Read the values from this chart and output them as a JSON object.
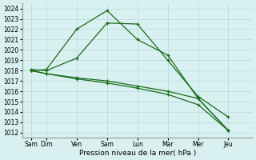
{
  "background_color": "#d8f0f0",
  "grid_color": "#b8dada",
  "line_color": "#1a6b1a",
  "xlabel": "Pression niveau de la mer( hPa )",
  "ylim": [
    1011.5,
    1024.5
  ],
  "xlim": [
    -0.3,
    7.3
  ],
  "xtick_positions": [
    0,
    0.5,
    1.5,
    2.5,
    3.5,
    4.5,
    5.5,
    6.5
  ],
  "xtick_labels": [
    "Sam",
    "Dim",
    "Ven",
    "Sam",
    "Lun",
    "Mar",
    "Mer",
    "Jeu"
  ],
  "series": [
    {
      "x": [
        0,
        0.5,
        1.5,
        2.5,
        3.5,
        4.5,
        5.5,
        6.5
      ],
      "y": [
        1018.0,
        1018.1,
        1022.0,
        1023.8,
        1021.0,
        1019.5,
        1015.3,
        1012.2
      ]
    },
    {
      "x": [
        0,
        0.5,
        1.5,
        2.5,
        3.5,
        4.5,
        5.5,
        6.5
      ],
      "y": [
        1018.1,
        1018.0,
        1019.2,
        1022.6,
        1022.5,
        1019.0,
        1015.5,
        1013.5
      ]
    },
    {
      "x": [
        0,
        0.5,
        1.5,
        2.5,
        3.5,
        4.5,
        5.5,
        6.5
      ],
      "y": [
        1018.0,
        1017.7,
        1017.3,
        1017.0,
        1016.5,
        1016.0,
        1015.3,
        1012.2
      ]
    },
    {
      "x": [
        0,
        0.5,
        1.5,
        2.5,
        3.5,
        4.5,
        5.5,
        6.5
      ],
      "y": [
        1018.0,
        1017.7,
        1017.2,
        1016.8,
        1016.3,
        1015.7,
        1014.7,
        1012.2
      ]
    }
  ]
}
